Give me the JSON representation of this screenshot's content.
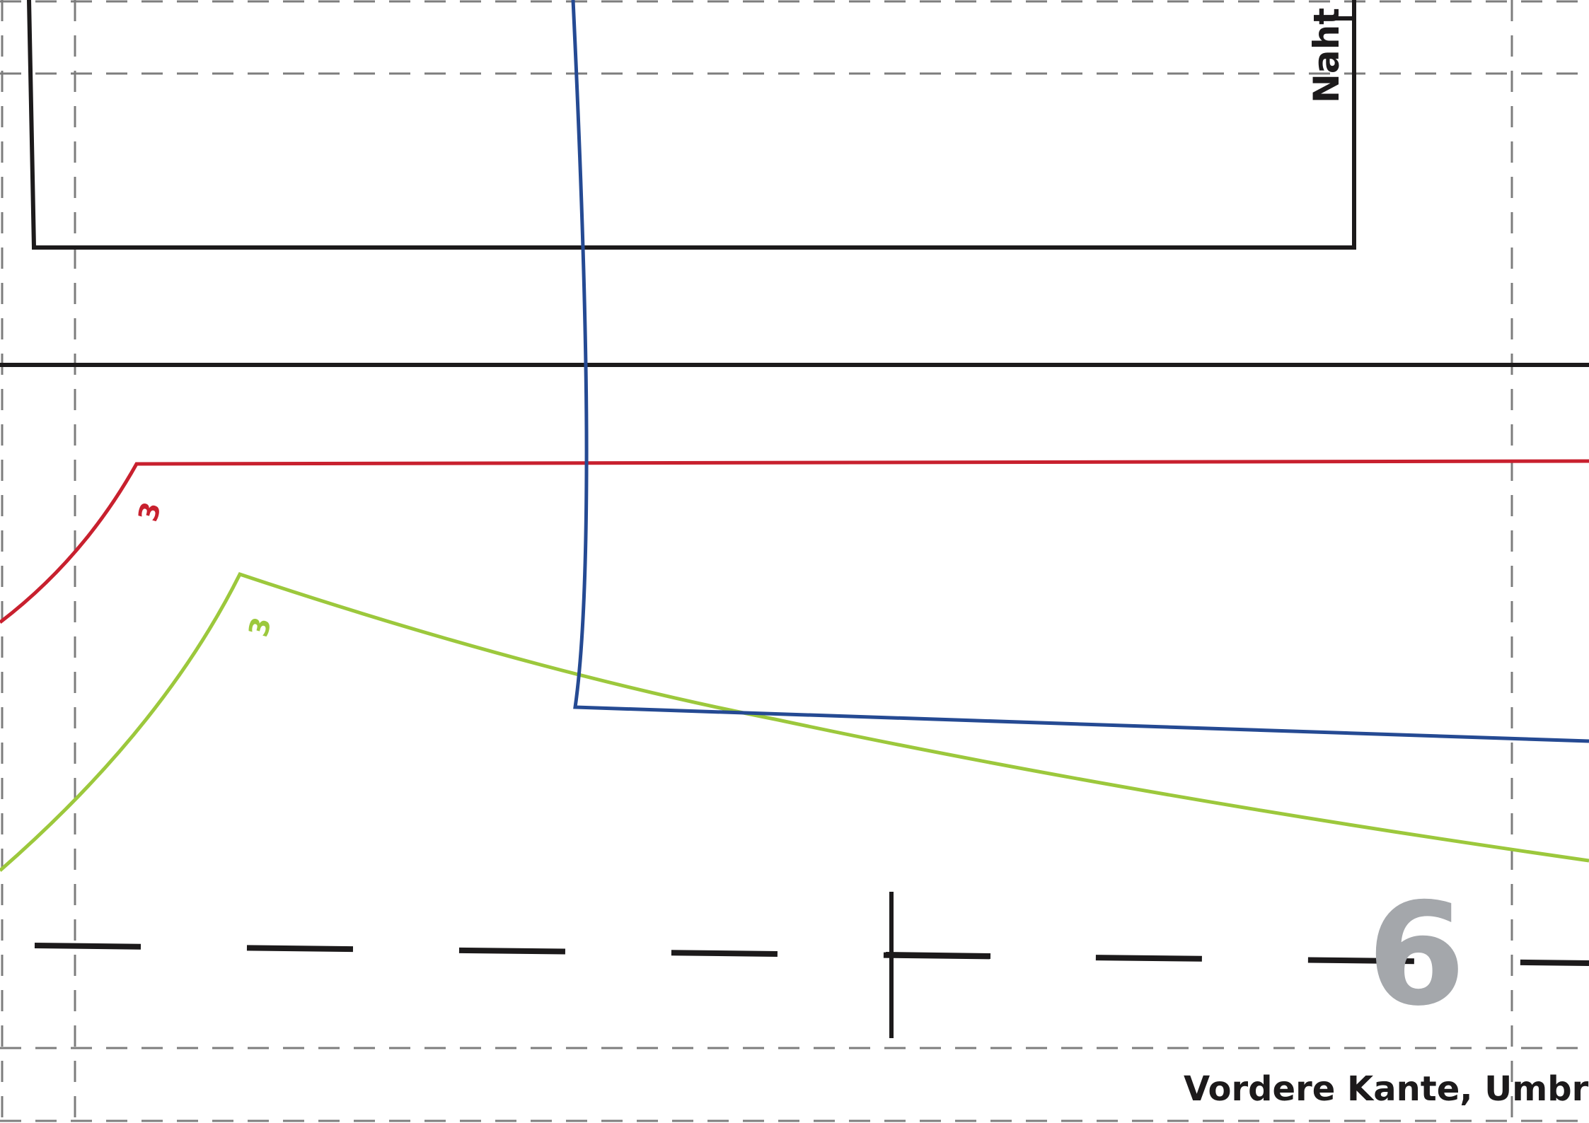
{
  "pattern": {
    "labels": {
      "seam_label": "Naht",
      "fold_edge_label": "Vordere Kante, Umbruch",
      "page_number": "6",
      "notch_red": "3",
      "notch_green": "3"
    },
    "colors": {
      "outline": "#1c1a1b",
      "tile_grid": "#7d7d7d",
      "size_red": "#c8202e",
      "size_green": "#9cc83c",
      "size_blue": "#254a93",
      "page_number": "#a4a7ab"
    }
  }
}
